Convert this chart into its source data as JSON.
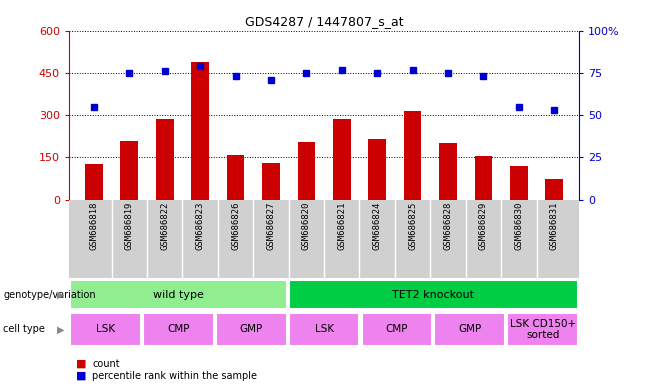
{
  "title": "GDS4287 / 1447807_s_at",
  "samples": [
    "GSM686818",
    "GSM686819",
    "GSM686822",
    "GSM686823",
    "GSM686826",
    "GSM686827",
    "GSM686820",
    "GSM686821",
    "GSM686824",
    "GSM686825",
    "GSM686828",
    "GSM686829",
    "GSM686830",
    "GSM686831"
  ],
  "counts": [
    125,
    210,
    285,
    490,
    160,
    130,
    205,
    285,
    215,
    315,
    200,
    155,
    120,
    75
  ],
  "percentiles": [
    55,
    75,
    76,
    79,
    73,
    71,
    75,
    77,
    75,
    77,
    75,
    73,
    55,
    53
  ],
  "bar_color": "#cc0000",
  "dot_color": "#0000cc",
  "ylim_left": [
    0,
    600
  ],
  "ylim_right": [
    0,
    100
  ],
  "yticks_left": [
    0,
    150,
    300,
    450,
    600
  ],
  "yticks_right": [
    0,
    25,
    50,
    75,
    100
  ],
  "ytick_labels_left": [
    "0",
    "150",
    "300",
    "450",
    "600"
  ],
  "ytick_labels_right": [
    "0",
    "25",
    "50",
    "75",
    "100%"
  ],
  "left_axis_color": "#cc0000",
  "right_axis_color": "#0000cc",
  "ticklabel_bg_color": "#d0d0d0",
  "genotype_groups": [
    {
      "label": "wild type",
      "start": 0,
      "end": 6,
      "color": "#90ee90"
    },
    {
      "label": "TET2 knockout",
      "start": 6,
      "end": 14,
      "color": "#00cc44"
    }
  ],
  "cell_type_groups": [
    {
      "label": "LSK",
      "start": 0,
      "end": 2,
      "color": "#ee82ee"
    },
    {
      "label": "CMP",
      "start": 2,
      "end": 4,
      "color": "#ee82ee"
    },
    {
      "label": "GMP",
      "start": 4,
      "end": 6,
      "color": "#ee82ee"
    },
    {
      "label": "LSK",
      "start": 6,
      "end": 8,
      "color": "#ee82ee"
    },
    {
      "label": "CMP",
      "start": 8,
      "end": 10,
      "color": "#ee82ee"
    },
    {
      "label": "GMP",
      "start": 10,
      "end": 12,
      "color": "#ee82ee"
    },
    {
      "label": "LSK CD150+\nsorted",
      "start": 12,
      "end": 14,
      "color": "#ee82ee"
    }
  ],
  "genotype_row_label": "genotype/variation",
  "cell_type_row_label": "cell type",
  "legend_count_label": "count",
  "legend_percentile_label": "percentile rank within the sample",
  "bar_width": 0.5
}
